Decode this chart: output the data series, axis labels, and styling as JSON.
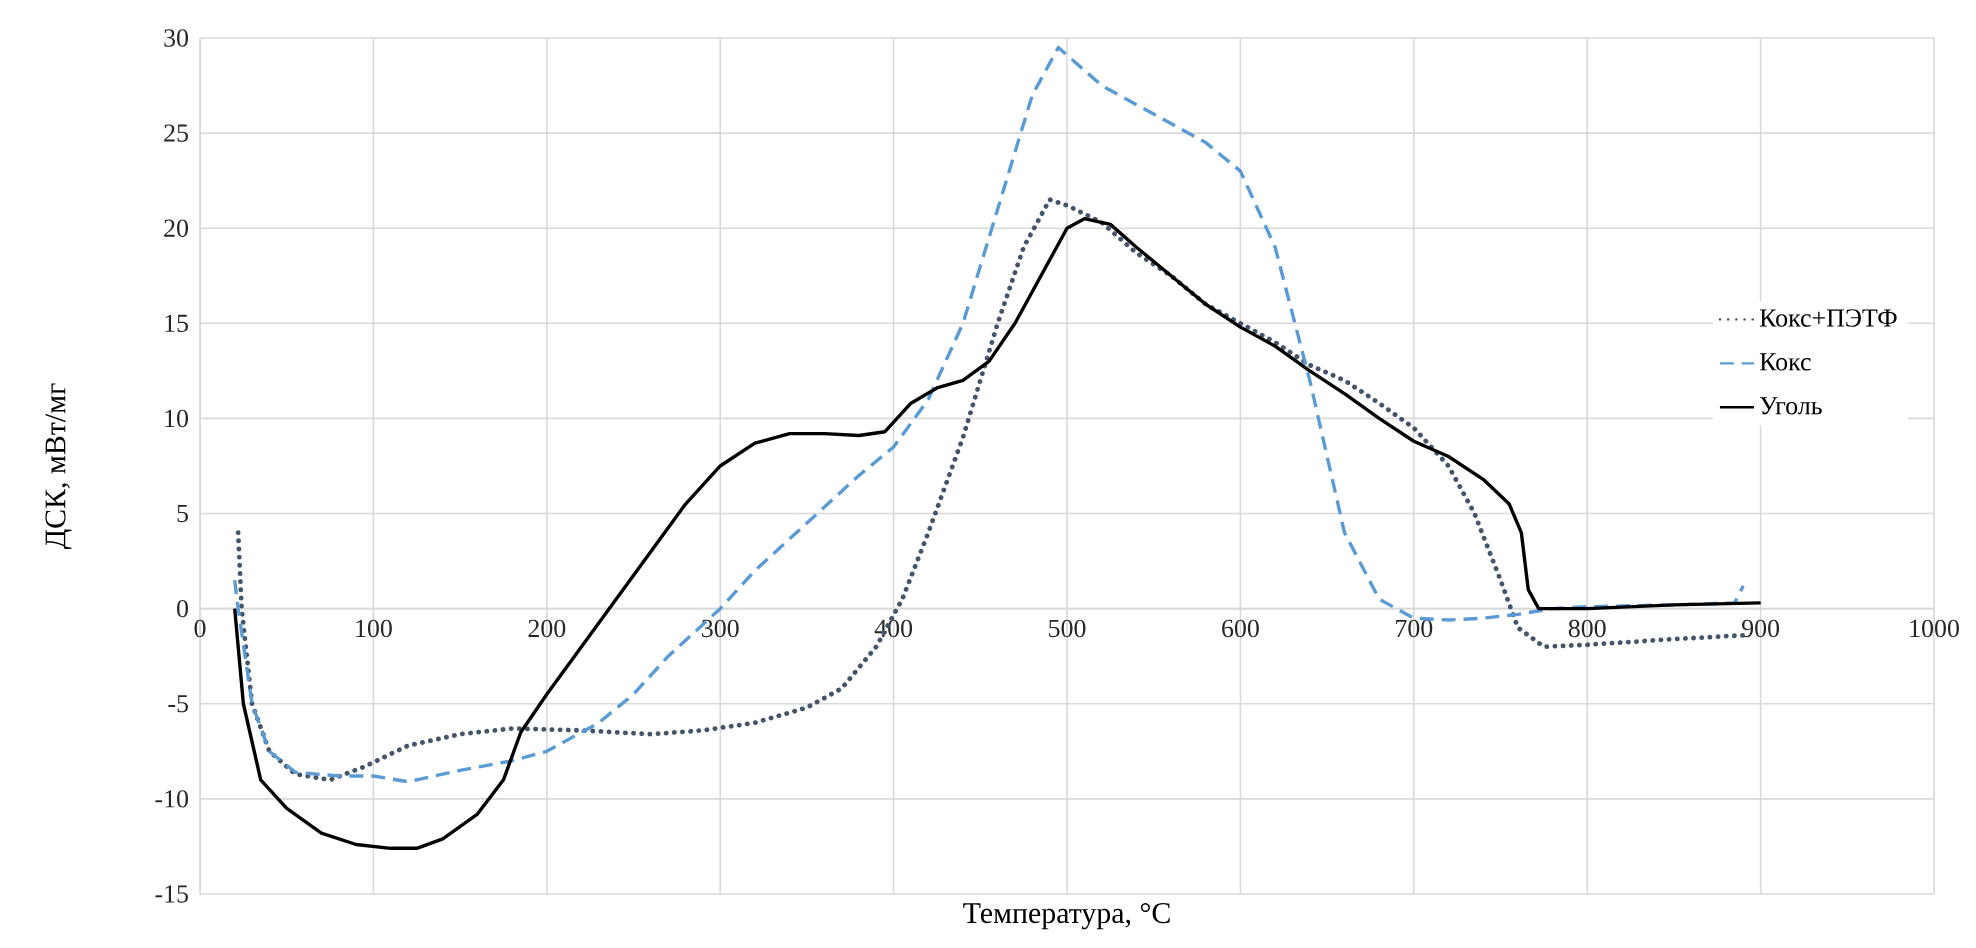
{
  "chart_data": {
    "type": "line",
    "xlabel": "Температура,  °C",
    "ylabel": "ДСК, мВт/мг",
    "xlim": [
      0,
      1000
    ],
    "xticks": [
      0,
      100,
      200,
      300,
      400,
      500,
      600,
      700,
      800,
      900,
      1000
    ],
    "ylim": [
      -15,
      30
    ],
    "yticks": [
      -15,
      -10,
      -5,
      0,
      5,
      10,
      15,
      20,
      25,
      30
    ],
    "grid": true,
    "legend": "right",
    "series": [
      {
        "name": "Кокс+ПЭТФ",
        "color": "#44546a",
        "line_style": "dotted",
        "x": [
          22,
          24,
          30,
          40,
          55,
          75,
          95,
          120,
          150,
          180,
          220,
          260,
          290,
          320,
          350,
          370,
          390,
          405,
          420,
          440,
          460,
          475,
          490,
          500,
          520,
          540,
          560,
          580,
          600,
          620,
          640,
          660,
          680,
          700,
          720,
          735,
          750,
          760,
          775,
          800,
          850,
          890
        ],
        "values": [
          4,
          0,
          -5,
          -7.5,
          -8.7,
          -9,
          -8.3,
          -7.2,
          -6.6,
          -6.3,
          -6.4,
          -6.6,
          -6.4,
          -6,
          -5.2,
          -4.2,
          -2,
          0.5,
          4,
          9,
          15,
          19,
          21.5,
          21.2,
          20.3,
          18.7,
          17.5,
          16,
          15,
          14,
          12.8,
          12,
          10.8,
          9.5,
          7.5,
          5,
          1.5,
          -1,
          -2,
          -1.9,
          -1.6,
          -1.4
        ]
      },
      {
        "name": "Кокс",
        "color": "#5b9bd5",
        "line_style": "dashed",
        "x": [
          20,
          22,
          30,
          40,
          55,
          80,
          100,
          120,
          150,
          180,
          200,
          230,
          250,
          270,
          300,
          320,
          350,
          380,
          400,
          420,
          440,
          460,
          480,
          495,
          520,
          550,
          580,
          600,
          620,
          640,
          660,
          680,
          700,
          720,
          740,
          760,
          780,
          800,
          850,
          885,
          890
        ],
        "values": [
          1.5,
          0,
          -5,
          -7.5,
          -8.6,
          -8.8,
          -8.8,
          -9.1,
          -8.5,
          -8,
          -7.5,
          -6,
          -4.5,
          -2.5,
          0,
          2,
          4.5,
          7,
          8.5,
          11,
          15,
          21,
          27,
          29.5,
          27.5,
          26,
          24.5,
          23,
          19,
          12,
          4,
          0.5,
          -0.5,
          -0.6,
          -0.5,
          -0.3,
          0,
          0.1,
          0.2,
          0.3,
          1.2
        ]
      },
      {
        "name": "Уголь",
        "color": "#000000",
        "line_style": "solid",
        "x": [
          20,
          25,
          35,
          50,
          70,
          90,
          110,
          125,
          140,
          160,
          175,
          185,
          200,
          220,
          240,
          260,
          280,
          300,
          320,
          340,
          360,
          380,
          395,
          410,
          425,
          440,
          455,
          470,
          485,
          500,
          510,
          525,
          540,
          560,
          580,
          600,
          620,
          640,
          660,
          680,
          700,
          720,
          740,
          755,
          762,
          766,
          772,
          800,
          850,
          900
        ],
        "values": [
          0,
          -5,
          -9,
          -10.5,
          -11.8,
          -12.4,
          -12.6,
          -12.6,
          -12.1,
          -10.8,
          -9,
          -6.5,
          -4.5,
          -2,
          0.5,
          3,
          5.5,
          7.5,
          8.7,
          9.2,
          9.2,
          9.1,
          9.3,
          10.8,
          11.6,
          12,
          13,
          15,
          17.5,
          20,
          20.5,
          20.2,
          19,
          17.5,
          16,
          14.8,
          13.8,
          12.5,
          11.3,
          10,
          8.8,
          8,
          6.8,
          5.5,
          4,
          1,
          0,
          0,
          0.2,
          0.3
        ]
      }
    ]
  }
}
